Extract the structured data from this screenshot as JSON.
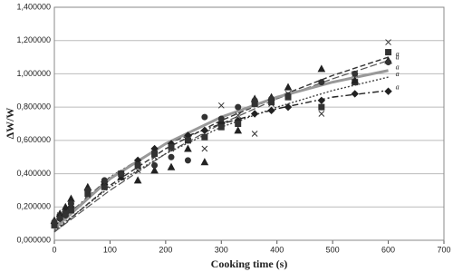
{
  "chart_data": {
    "type": "scatter",
    "x_label": "Cooking time (s)",
    "y_label": "ΔW/W",
    "xlim": [
      0,
      700
    ],
    "xticks": [
      0,
      100,
      200,
      300,
      400,
      500,
      600,
      700
    ],
    "ylim": [
      0,
      1.4
    ],
    "yticks": [
      {
        "value": 0,
        "label": "0,000000"
      },
      {
        "value": 0.2,
        "label": "0,200000"
      },
      {
        "value": 0.4,
        "label": "0,400000"
      },
      {
        "value": 0.6,
        "label": "0,600000"
      },
      {
        "value": 0.8,
        "label": "0,800000"
      },
      {
        "value": 1.0,
        "label": "1,000000"
      },
      {
        "value": 1.2,
        "label": "1,200000"
      },
      {
        "value": 1.4,
        "label": "1,400000"
      }
    ],
    "grid": true,
    "x": [
      0,
      10,
      20,
      30,
      60,
      90,
      120,
      150,
      180,
      210,
      240,
      270,
      300,
      330,
      360,
      390,
      420,
      480,
      540,
      600
    ],
    "fit_x": [
      0,
      100,
      200,
      300,
      400,
      500,
      600
    ],
    "series": [
      {
        "marker": "diamond",
        "color": "#222222",
        "fit_color": "#222222",
        "fit_dash": "7 3 2 3",
        "fit_width": 1.4,
        "annotation": "a",
        "values": [
          0.1,
          0.13,
          0.17,
          0.2,
          0.3,
          0.35,
          0.4,
          0.48,
          0.55,
          0.58,
          0.63,
          0.66,
          0.7,
          0.72,
          0.76,
          0.78,
          0.8,
          0.84,
          0.88,
          0.895
        ],
        "fit": [
          0.08,
          0.38,
          0.58,
          0.7,
          0.79,
          0.86,
          0.9
        ]
      },
      {
        "marker": "square",
        "color": "#333333",
        "fit_color": "#333333",
        "fit_dash": "6 3",
        "fit_width": 1.4,
        "annotation": "a",
        "values": [
          0.09,
          0.14,
          0.16,
          0.18,
          0.28,
          0.32,
          0.4,
          0.45,
          0.52,
          0.56,
          0.6,
          0.62,
          0.68,
          0.7,
          0.82,
          0.83,
          0.86,
          0.8,
          0.95,
          1.13
        ],
        "fit": [
          0.05,
          0.33,
          0.55,
          0.72,
          0.86,
          0.99,
          1.1
        ]
      },
      {
        "marker": "triangle",
        "color": "#222222",
        "fit_color": "#555555",
        "fit_dash": "8 3",
        "fit_width": 1.2,
        "annotation": "a",
        "values": [
          0.12,
          0.16,
          0.2,
          0.25,
          0.32,
          0.35,
          0.38,
          0.36,
          0.42,
          0.44,
          0.55,
          0.47,
          0.72,
          0.66,
          0.85,
          0.86,
          0.92,
          1.03,
          0.96,
          1.08
        ],
        "fit": [
          0.05,
          0.3,
          0.52,
          0.7,
          0.85,
          0.97,
          1.08
        ]
      },
      {
        "marker": "cross",
        "color": "#333333",
        "fit_color": "#444444",
        "fit_dash": "2 2",
        "fit_width": 1.4,
        "annotation": "a",
        "values": [
          0.1,
          0.15,
          0.17,
          0.2,
          0.27,
          0.34,
          0.39,
          0.42,
          0.5,
          0.55,
          0.6,
          0.55,
          0.81,
          0.75,
          0.64,
          0.82,
          0.88,
          0.76,
          1.0,
          1.19
        ],
        "fit": [
          0.06,
          0.32,
          0.52,
          0.68,
          0.8,
          0.9,
          0.98
        ]
      },
      {
        "marker": "circle",
        "color": "#333333",
        "fit_color": "#999999",
        "fit_dash": "none",
        "fit_width": 3,
        "annotation": "a",
        "values": [
          0.11,
          0.13,
          0.15,
          0.22,
          0.3,
          0.36,
          0.4,
          0.45,
          0.45,
          0.5,
          0.48,
          0.74,
          0.73,
          0.8,
          0.84,
          0.85,
          0.87,
          0.95,
          1.0,
          1.07
        ],
        "fit": [
          0.07,
          0.37,
          0.58,
          0.74,
          0.86,
          0.95,
          1.02
        ]
      }
    ]
  }
}
